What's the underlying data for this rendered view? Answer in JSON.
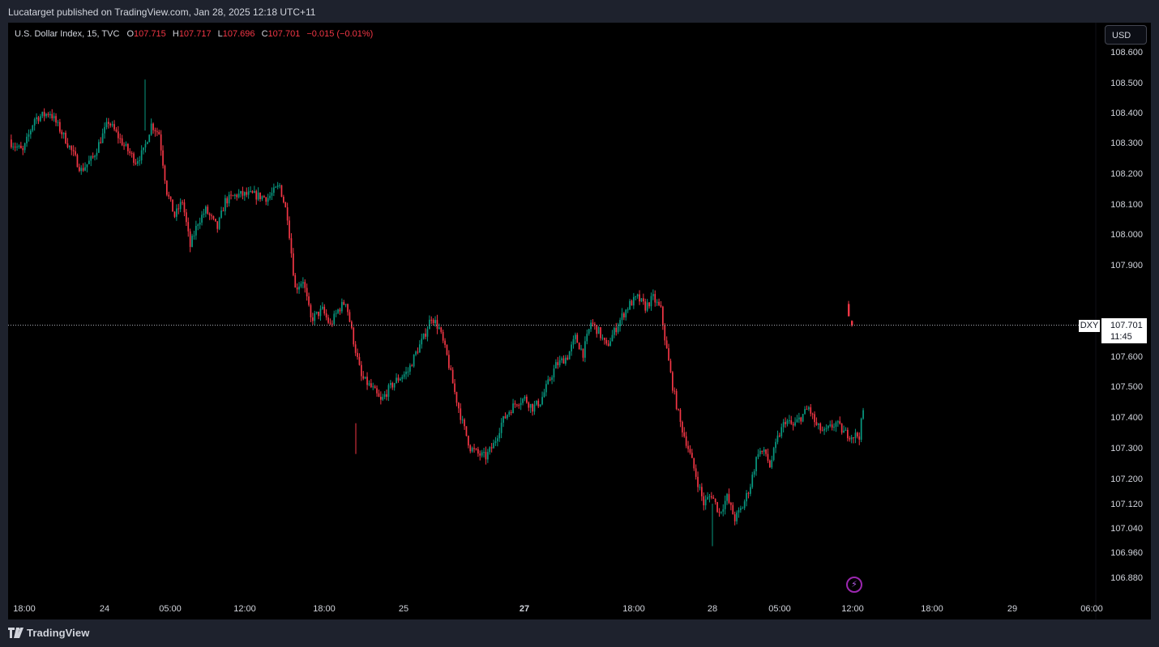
{
  "header": {
    "published_line": "Lucatarget published on TradingView.com, Jan 28, 2025 12:18 UTC+11"
  },
  "legend": {
    "symbol": "U.S. Dollar Index, 15, TVC",
    "o_label": "O",
    "o_value": "107.715",
    "h_label": "H",
    "h_value": "107.717",
    "l_label": "L",
    "l_value": "107.696",
    "c_label": "C",
    "c_value": "107.701",
    "change": "−0.015 (−0.01%)"
  },
  "currency_button": "USD",
  "price_tag": {
    "ticker": "DXY",
    "price": "107.701",
    "countdown": "11:45"
  },
  "footer": {
    "brand": "TradingView"
  },
  "colors": {
    "up": "#089981",
    "down": "#f23645",
    "background": "#000000",
    "frame": "#1e222d",
    "text": "#d1d4dc",
    "event_marker": "#9c27b0"
  },
  "icons": {
    "event_marker": "lightning-icon",
    "brand_logo": "tradingview-logo-icon"
  },
  "chart_data": {
    "type": "candlestick",
    "symbol": "U.S. Dollar Index",
    "interval": "15",
    "y_ticks": [
      108.6,
      108.5,
      108.4,
      108.3,
      108.2,
      108.1,
      108.0,
      107.9,
      107.6,
      107.5,
      107.4,
      107.3,
      107.2,
      107.12,
      107.04,
      106.96,
      106.88
    ],
    "y_tick_labels": [
      "108.600",
      "108.500",
      "108.400",
      "108.300",
      "108.200",
      "108.100",
      "108.000",
      "107.900",
      "107.600",
      "107.500",
      "107.400",
      "107.300",
      "107.200",
      "107.120",
      "107.040",
      "106.960",
      "106.880"
    ],
    "x_ticks": [
      {
        "label": "18:00",
        "bold": false
      },
      {
        "label": "24",
        "bold": false
      },
      {
        "label": "05:00",
        "bold": false
      },
      {
        "label": "12:00",
        "bold": false
      },
      {
        "label": "18:00",
        "bold": false
      },
      {
        "label": "25",
        "bold": false
      },
      {
        "label": "27",
        "bold": true
      },
      {
        "label": "18:00",
        "bold": false
      },
      {
        "label": "28",
        "bold": false
      },
      {
        "label": "05:00",
        "bold": false
      },
      {
        "label": "12:00",
        "bold": false
      },
      {
        "label": "18:00",
        "bold": false
      },
      {
        "label": "29",
        "bold": false
      },
      {
        "label": "06:00",
        "bold": false
      }
    ],
    "last_price": 107.701,
    "close_path_anchors": [
      [
        0,
        108.3
      ],
      [
        6,
        108.27
      ],
      [
        12,
        108.38
      ],
      [
        20,
        108.4
      ],
      [
        28,
        108.31
      ],
      [
        36,
        108.21
      ],
      [
        42,
        108.25
      ],
      [
        50,
        108.37
      ],
      [
        58,
        108.29
      ],
      [
        64,
        108.24
      ],
      [
        68,
        108.27
      ],
      [
        72,
        108.36
      ],
      [
        76,
        108.33
      ],
      [
        80,
        108.14
      ],
      [
        84,
        108.06
      ],
      [
        88,
        108.11
      ],
      [
        92,
        107.96
      ],
      [
        96,
        108.04
      ],
      [
        100,
        108.08
      ],
      [
        106,
        108.02
      ],
      [
        110,
        108.11
      ],
      [
        116,
        108.13
      ],
      [
        124,
        108.13
      ],
      [
        132,
        108.12
      ],
      [
        138,
        108.16
      ],
      [
        142,
        108.06
      ],
      [
        146,
        107.82
      ],
      [
        150,
        107.85
      ],
      [
        154,
        107.72
      ],
      [
        160,
        107.75
      ],
      [
        164,
        107.7
      ],
      [
        168,
        107.75
      ],
      [
        172,
        107.78
      ],
      [
        176,
        107.65
      ],
      [
        180,
        107.53
      ],
      [
        186,
        107.49
      ],
      [
        190,
        107.45
      ],
      [
        194,
        107.49
      ],
      [
        198,
        107.52
      ],
      [
        204,
        107.55
      ],
      [
        208,
        107.61
      ],
      [
        212,
        107.66
      ],
      [
        216,
        107.73
      ],
      [
        220,
        107.69
      ],
      [
        224,
        107.6
      ],
      [
        228,
        107.48
      ],
      [
        232,
        107.38
      ],
      [
        236,
        107.3
      ],
      [
        240,
        107.28
      ],
      [
        244,
        107.27
      ],
      [
        248,
        107.31
      ],
      [
        252,
        107.38
      ],
      [
        256,
        107.42
      ],
      [
        260,
        107.45
      ],
      [
        264,
        107.46
      ],
      [
        268,
        107.43
      ],
      [
        272,
        107.45
      ],
      [
        280,
        107.57
      ],
      [
        286,
        107.6
      ],
      [
        290,
        107.66
      ],
      [
        294,
        107.61
      ],
      [
        298,
        107.71
      ],
      [
        302,
        107.68
      ],
      [
        306,
        107.63
      ],
      [
        310,
        107.68
      ],
      [
        314,
        107.73
      ],
      [
        318,
        107.77
      ],
      [
        322,
        107.79
      ],
      [
        326,
        107.76
      ],
      [
        330,
        107.79
      ],
      [
        334,
        107.75
      ],
      [
        336,
        107.66
      ],
      [
        340,
        107.5
      ],
      [
        344,
        107.38
      ],
      [
        348,
        107.3
      ],
      [
        352,
        107.21
      ],
      [
        356,
        107.12
      ],
      [
        360,
        107.15
      ],
      [
        364,
        107.09
      ],
      [
        368,
        107.14
      ],
      [
        372,
        107.07
      ],
      [
        376,
        107.11
      ],
      [
        380,
        107.18
      ],
      [
        384,
        107.29
      ],
      [
        388,
        107.28
      ],
      [
        390,
        107.24
      ],
      [
        394,
        107.33
      ],
      [
        398,
        107.39
      ],
      [
        402,
        107.37
      ],
      [
        406,
        107.4
      ],
      [
        410,
        107.43
      ],
      [
        414,
        107.37
      ],
      [
        418,
        107.35
      ],
      [
        424,
        107.38
      ],
      [
        428,
        107.35
      ],
      [
        432,
        107.34
      ],
      [
        436,
        107.34
      ],
      [
        438,
        107.42
      ]
    ],
    "last_candles": [
      {
        "open": 107.77,
        "high": 107.78,
        "low": 107.73,
        "close": 107.73
      },
      {
        "open": 107.715,
        "high": 107.717,
        "low": 107.696,
        "close": 107.701
      }
    ],
    "grid": false,
    "legend_position": "top-left"
  }
}
